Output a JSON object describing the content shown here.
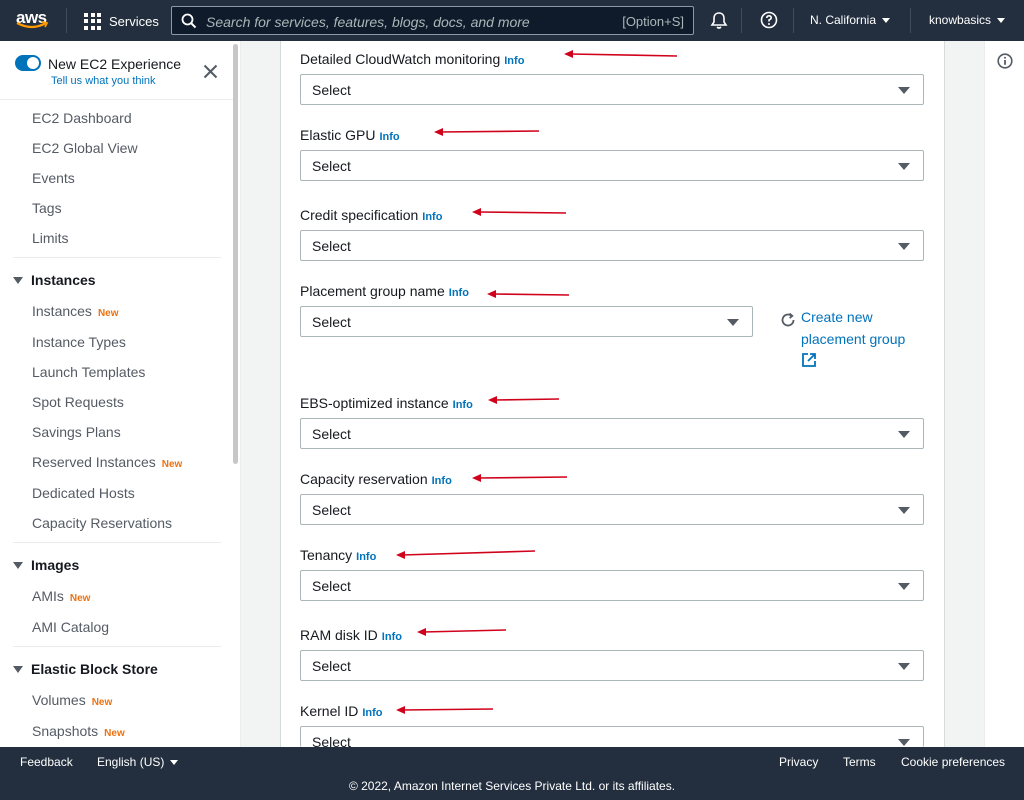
{
  "topnav": {
    "logo_text": "aws",
    "services_label": "Services",
    "search_placeholder": "Search for services, features, blogs, docs, and more",
    "search_shortcut": "[Option+S]",
    "region": "N. California",
    "account": "knowbasics"
  },
  "sidebar": {
    "experience_title": "New EC2 Experience",
    "experience_link": "Tell us what you think",
    "top_items": [
      "EC2 Dashboard",
      "EC2 Global View",
      "Events",
      "Tags",
      "Limits"
    ],
    "sections": [
      {
        "title": "Instances",
        "items": [
          {
            "label": "Instances",
            "badge": "New"
          },
          {
            "label": "Instance Types",
            "badge": ""
          },
          {
            "label": "Launch Templates",
            "badge": ""
          },
          {
            "label": "Spot Requests",
            "badge": ""
          },
          {
            "label": "Savings Plans",
            "badge": ""
          },
          {
            "label": "Reserved Instances",
            "badge": "New"
          },
          {
            "label": "Dedicated Hosts",
            "badge": ""
          },
          {
            "label": "Capacity Reservations",
            "badge": ""
          }
        ]
      },
      {
        "title": "Images",
        "items": [
          {
            "label": "AMIs",
            "badge": "New"
          },
          {
            "label": "AMI Catalog",
            "badge": ""
          }
        ]
      },
      {
        "title": "Elastic Block Store",
        "items": [
          {
            "label": "Volumes",
            "badge": "New"
          },
          {
            "label": "Snapshots",
            "badge": "New"
          }
        ]
      }
    ]
  },
  "form": {
    "info_label": "Info",
    "fields": [
      {
        "label": "Detailed CloudWatch monitoring",
        "value": "Select"
      },
      {
        "label": "Elastic GPU",
        "value": "Select"
      },
      {
        "label": "Credit specification",
        "value": "Select"
      },
      {
        "label": "Placement group name",
        "value": "Select"
      },
      {
        "label": "EBS-optimized instance",
        "value": "Select"
      },
      {
        "label": "Capacity reservation",
        "value": "Select"
      },
      {
        "label": "Tenancy",
        "value": "Select"
      },
      {
        "label": "RAM disk ID",
        "value": "Select"
      },
      {
        "label": "Kernel ID",
        "value": "Select"
      }
    ],
    "create_link": "Create new placement group"
  },
  "footer": {
    "feedback": "Feedback",
    "language": "English (US)",
    "privacy": "Privacy",
    "terms": "Terms",
    "cookie": "Cookie preferences",
    "copyright": "© 2022, Amazon Internet Services Private Ltd. or its affiliates."
  },
  "colors": {
    "nav_bg": "#232f3e",
    "link": "#0073bb",
    "new_badge": "#ec7211",
    "annotation_arrow": "#d0021b"
  }
}
